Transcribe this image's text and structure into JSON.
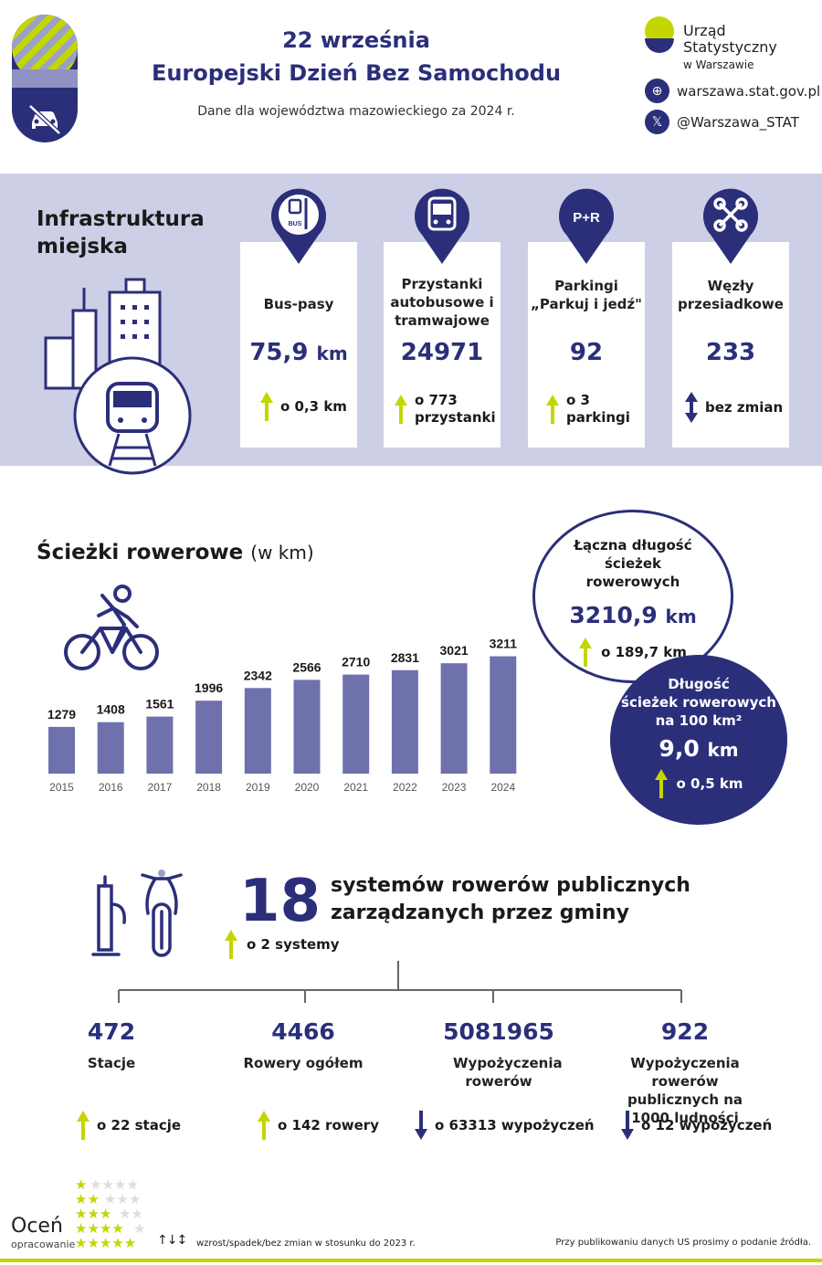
{
  "header": {
    "date": "22 września",
    "title": "Europejski Dzień Bez Samochodu",
    "subtitle": "Dane dla województwa mazowieckiego za 2024 r.",
    "org_line1": "Urząd Statystyczny",
    "org_line2": "w Warszawie",
    "website": "warszawa.stat.gov.pl",
    "twitter": "@Warszawa_STAT"
  },
  "infra": {
    "title_line1": "Infrastruktura",
    "title_line2": "miejska",
    "cards": [
      {
        "label": "Bus-pasy",
        "value": "75,9",
        "unit": "km",
        "change": "o 0,3 km",
        "trend": "up",
        "icon": "bus-lane-icon"
      },
      {
        "label": "Przystanki autobusowe i tramwajowe",
        "value": "24971",
        "unit": "",
        "change": "o 773 przystanki",
        "trend": "up",
        "icon": "bus-icon"
      },
      {
        "label": "Parkingi „Parkuj i jedź\"",
        "value": "92",
        "unit": "",
        "change": "o 3 parkingi",
        "trend": "up",
        "icon": "park-and-ride-icon"
      },
      {
        "label": "Węzły przesiadkowe",
        "value": "233",
        "unit": "",
        "change": "bez zmian",
        "trend": "same",
        "icon": "hub-icon"
      }
    ],
    "pin_labels": [
      "BUS",
      "P+R"
    ]
  },
  "bike": {
    "title": "Ścieżki rowerowe",
    "title_unit": "(w km)",
    "total": {
      "label": "Łączna długość ścieżek rowerowych",
      "value": "3210,9",
      "unit": "km",
      "change": "o 189,7 km"
    },
    "density": {
      "label_line1": "Długość",
      "label_line2": "ścieżek rowerowych",
      "label_line3": "na 100 km²",
      "value": "9,0",
      "unit": "km",
      "change": "o 0,5 km"
    }
  },
  "chart_data": {
    "type": "bar",
    "categories": [
      "2015",
      "2016",
      "2017",
      "2018",
      "2019",
      "2020",
      "2021",
      "2022",
      "2023",
      "2024"
    ],
    "values": [
      1279,
      1408,
      1561,
      1996,
      2342,
      2566,
      2710,
      2831,
      3021,
      3211
    ],
    "title": "Ścieżki rowerowe",
    "ylabel": "(w km)",
    "color": "#6e71ab"
  },
  "public_bikes": {
    "count": "18",
    "desc_line1": "systemów rowerów publicznych",
    "desc_line2": "zarządzanych przez gminy",
    "change": "o 2 systemy",
    "stats": [
      {
        "value": "472",
        "label": "Stacje",
        "change": "o 22 stacje",
        "trend": "up"
      },
      {
        "value": "4466",
        "label": "Rowery ogółem",
        "change": "o 142 rowery",
        "trend": "up"
      },
      {
        "value": "5081965",
        "label": "Wypożyczenia rowerów",
        "change": "o 63313 wypożyczeń",
        "trend": "down"
      },
      {
        "value": "922",
        "label": "Wypożyczenia rowerów publicznych na 1000 ludności",
        "change": "o 12 wypożyczeń",
        "trend": "down"
      }
    ]
  },
  "footer": {
    "rate_title": "Oceń",
    "rate_sub": "opracowanie",
    "legend": "wzrost/spadek/bez zmian w stosunku do 2023 r.",
    "note": "Przy publikowaniu danych US prosimy o podanie źródła."
  },
  "colors": {
    "navy": "#2b2f7a",
    "lime": "#c4d600",
    "lavender": "#cdcfe6",
    "bar": "#6e71ab"
  }
}
